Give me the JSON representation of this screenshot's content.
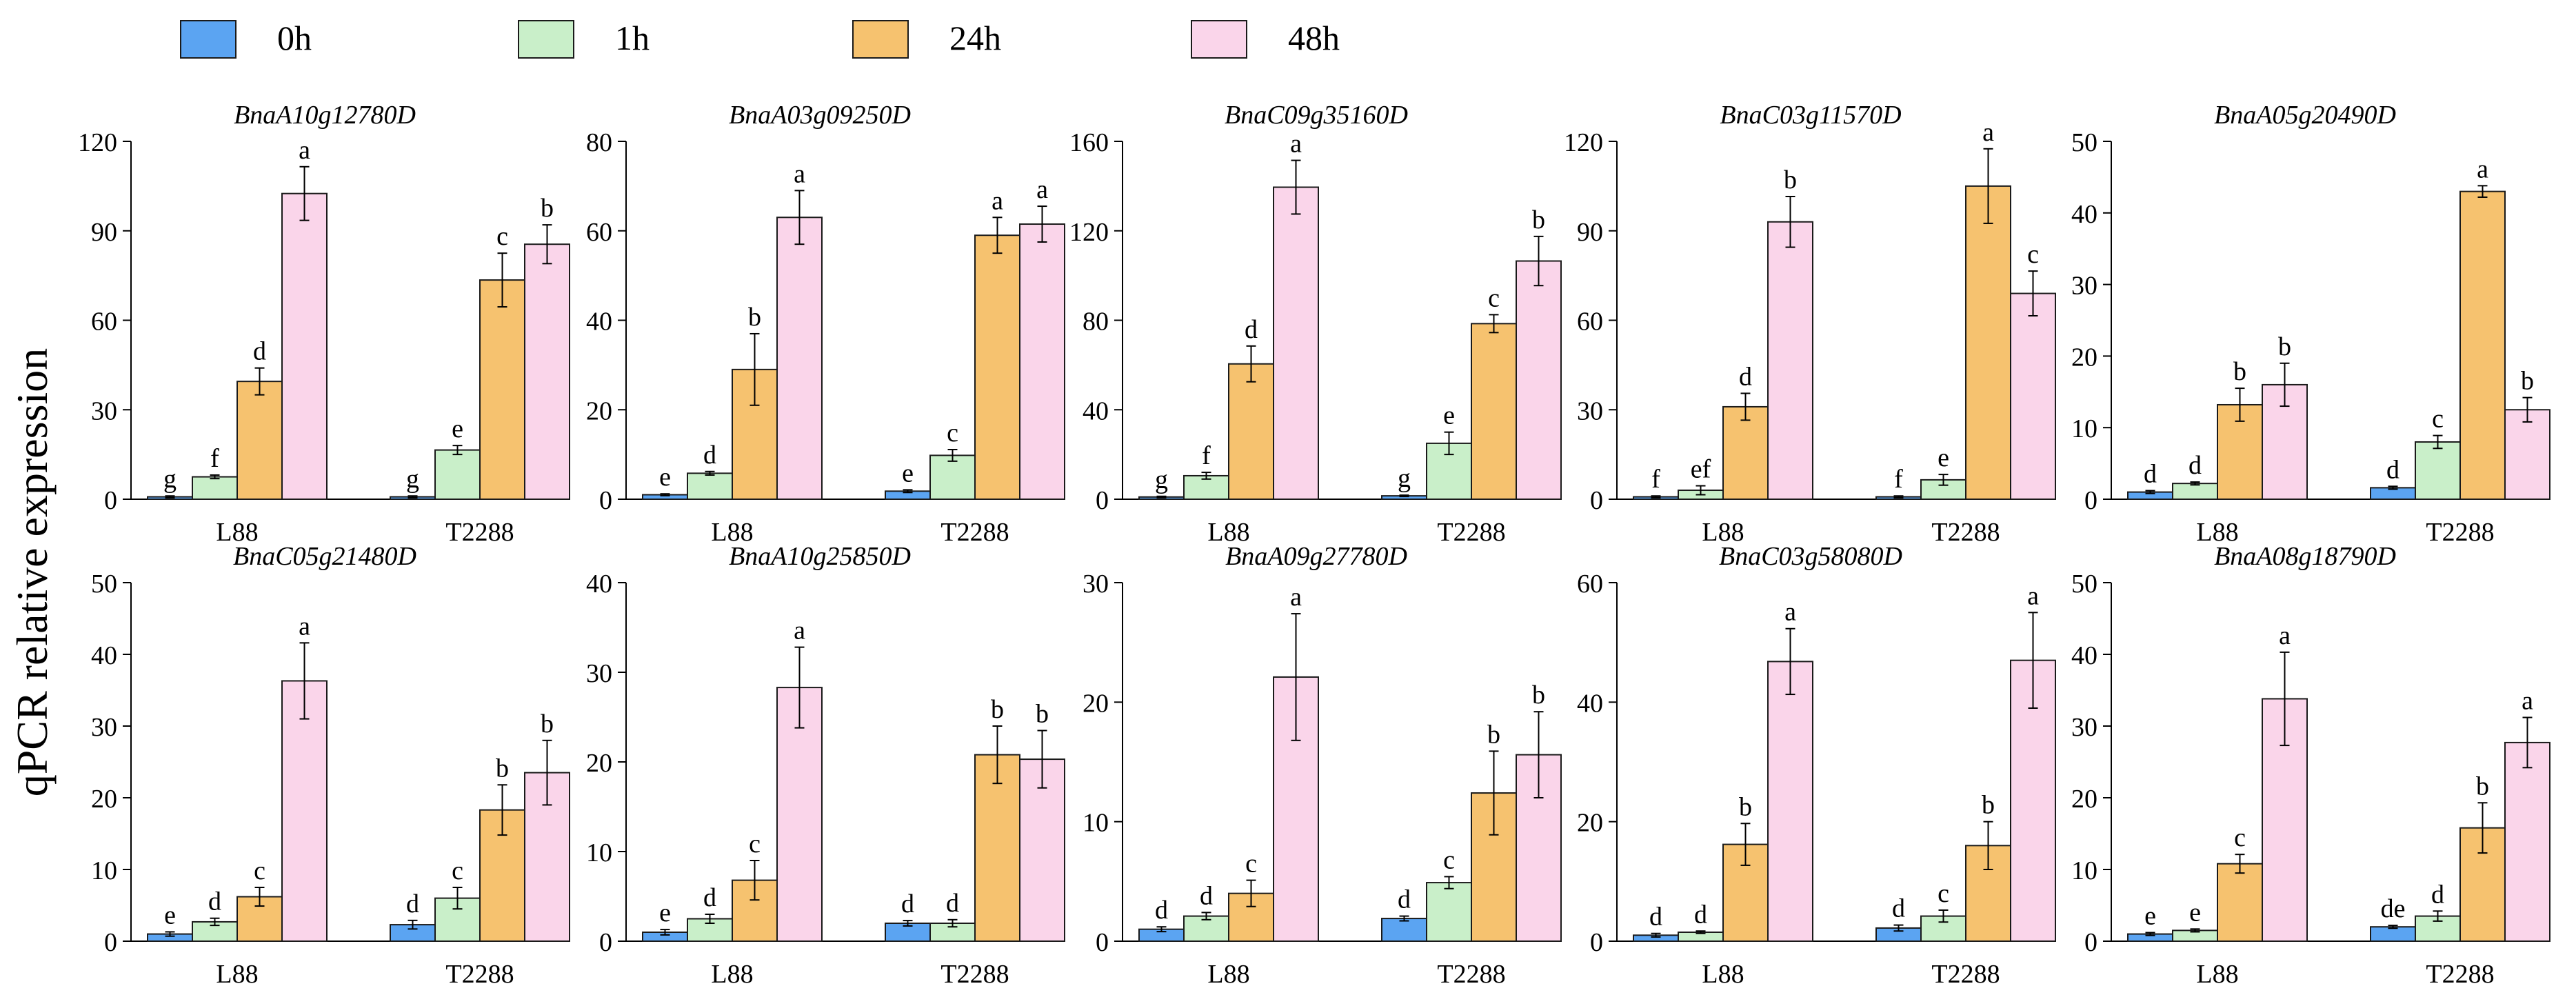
{
  "ylabel": "qPCR relative expression",
  "legend": {
    "items": [
      {
        "name": "0h",
        "color": "#5ba4f2"
      },
      {
        "name": "1h",
        "color": "#c9efc9"
      },
      {
        "name": "24h",
        "color": "#f6c26f"
      },
      {
        "name": "48h",
        "color": "#fad5ea"
      }
    ]
  },
  "chart_data": [
    {
      "type": "bar",
      "title": "BnaA10g12780D",
      "categories": [
        "L88",
        "T2288"
      ],
      "ylim": [
        0,
        120
      ],
      "yticks": [
        0,
        30,
        60,
        90,
        120
      ],
      "series": [
        {
          "name": "0h",
          "values": [
            0.8,
            0.8
          ],
          "errors": [
            0.3,
            0.3
          ],
          "labels": [
            "g",
            "g"
          ]
        },
        {
          "name": "1h",
          "values": [
            7.5,
            16.5
          ],
          "errors": [
            0.6,
            1.5
          ],
          "labels": [
            "f",
            "e"
          ]
        },
        {
          "name": "24h",
          "values": [
            39.5,
            73.5
          ],
          "errors": [
            4.5,
            9.0
          ],
          "labels": [
            "d",
            "c"
          ]
        },
        {
          "name": "48h",
          "values": [
            102.5,
            85.5
          ],
          "errors": [
            9.0,
            6.5
          ],
          "labels": [
            "a",
            "b"
          ]
        }
      ]
    },
    {
      "type": "bar",
      "title": "BnaA03g09250D",
      "categories": [
        "L88",
        "T2288"
      ],
      "ylim": [
        0,
        80
      ],
      "yticks": [
        0,
        20,
        40,
        60,
        80
      ],
      "series": [
        {
          "name": "0h",
          "values": [
            1.0,
            1.8
          ],
          "errors": [
            0.2,
            0.3
          ],
          "labels": [
            "e",
            "e"
          ]
        },
        {
          "name": "1h",
          "values": [
            5.8,
            9.8
          ],
          "errors": [
            0.4,
            1.3
          ],
          "labels": [
            "d",
            "c"
          ]
        },
        {
          "name": "24h",
          "values": [
            29.0,
            59.0
          ],
          "errors": [
            8.0,
            4.0
          ],
          "labels": [
            "b",
            "a"
          ]
        },
        {
          "name": "48h",
          "values": [
            63.0,
            61.5
          ],
          "errors": [
            6.0,
            4.0
          ],
          "labels": [
            "a",
            "a"
          ]
        }
      ]
    },
    {
      "type": "bar",
      "title": "BnaC09g35160D",
      "categories": [
        "L88",
        "T2288"
      ],
      "ylim": [
        0,
        160
      ],
      "yticks": [
        0,
        40,
        80,
        120,
        160
      ],
      "series": [
        {
          "name": "0h",
          "values": [
            1.0,
            1.5
          ],
          "errors": [
            0.3,
            0.3
          ],
          "labels": [
            "g",
            "g"
          ]
        },
        {
          "name": "1h",
          "values": [
            10.5,
            25.0
          ],
          "errors": [
            1.5,
            5.0
          ],
          "labels": [
            "f",
            "e"
          ]
        },
        {
          "name": "24h",
          "values": [
            60.5,
            78.5
          ],
          "errors": [
            8.0,
            4.0
          ],
          "labels": [
            "d",
            "c"
          ]
        },
        {
          "name": "48h",
          "values": [
            139.5,
            106.5
          ],
          "errors": [
            12.0,
            11.0
          ],
          "labels": [
            "a",
            "b"
          ]
        }
      ]
    },
    {
      "type": "bar",
      "title": "BnaC03g11570D",
      "categories": [
        "L88",
        "T2288"
      ],
      "ylim": [
        0,
        120
      ],
      "yticks": [
        0,
        30,
        60,
        90,
        120
      ],
      "series": [
        {
          "name": "0h",
          "values": [
            0.8,
            0.8
          ],
          "errors": [
            0.3,
            0.3
          ],
          "labels": [
            "f",
            "f"
          ]
        },
        {
          "name": "1h",
          "values": [
            3.0,
            6.5
          ],
          "errors": [
            1.5,
            1.8
          ],
          "labels": [
            "ef",
            "e"
          ]
        },
        {
          "name": "24h",
          "values": [
            31.0,
            105.0
          ],
          "errors": [
            4.5,
            12.5
          ],
          "labels": [
            "d",
            "a"
          ]
        },
        {
          "name": "48h",
          "values": [
            93.0,
            69.0
          ],
          "errors": [
            8.5,
            7.5
          ],
          "labels": [
            "b",
            "c"
          ]
        }
      ]
    },
    {
      "type": "bar",
      "title": "BnaA05g20490D",
      "categories": [
        "L88",
        "T2288"
      ],
      "ylim": [
        0,
        50
      ],
      "yticks": [
        0,
        10,
        20,
        30,
        40,
        50
      ],
      "series": [
        {
          "name": "0h",
          "values": [
            1.0,
            1.6
          ],
          "errors": [
            0.2,
            0.2
          ],
          "labels": [
            "d",
            "d"
          ]
        },
        {
          "name": "1h",
          "values": [
            2.2,
            8.0
          ],
          "errors": [
            0.2,
            0.9
          ],
          "labels": [
            "d",
            "c"
          ]
        },
        {
          "name": "24h",
          "values": [
            13.2,
            43.0
          ],
          "errors": [
            2.3,
            0.8
          ],
          "labels": [
            "b",
            "a"
          ]
        },
        {
          "name": "48h",
          "values": [
            16.0,
            12.5
          ],
          "errors": [
            3.0,
            1.7
          ],
          "labels": [
            "b",
            "b"
          ]
        }
      ]
    },
    {
      "type": "bar",
      "title": "BnaC05g21480D",
      "categories": [
        "L88",
        "T2288"
      ],
      "ylim": [
        0,
        50
      ],
      "yticks": [
        0,
        10,
        20,
        30,
        40,
        50
      ],
      "series": [
        {
          "name": "0h",
          "values": [
            1.0,
            2.3
          ],
          "errors": [
            0.3,
            0.6
          ],
          "labels": [
            "e",
            "d"
          ]
        },
        {
          "name": "1h",
          "values": [
            2.7,
            6.0
          ],
          "errors": [
            0.5,
            1.5
          ],
          "labels": [
            "d",
            "c"
          ]
        },
        {
          "name": "24h",
          "values": [
            6.2,
            18.3
          ],
          "errors": [
            1.3,
            3.5
          ],
          "labels": [
            "c",
            "b"
          ]
        },
        {
          "name": "48h",
          "values": [
            36.3,
            23.5
          ],
          "errors": [
            5.3,
            4.5
          ],
          "labels": [
            "a",
            "b"
          ]
        }
      ]
    },
    {
      "type": "bar",
      "title": "BnaA10g25850D",
      "categories": [
        "L88",
        "T2288"
      ],
      "ylim": [
        0,
        40
      ],
      "yticks": [
        0,
        10,
        20,
        30,
        40
      ],
      "series": [
        {
          "name": "0h",
          "values": [
            1.0,
            2.0
          ],
          "errors": [
            0.3,
            0.3
          ],
          "labels": [
            "e",
            "d"
          ]
        },
        {
          "name": "1h",
          "values": [
            2.5,
            2.0
          ],
          "errors": [
            0.5,
            0.4
          ],
          "labels": [
            "d",
            "d"
          ]
        },
        {
          "name": "24h",
          "values": [
            6.8,
            20.8
          ],
          "errors": [
            2.2,
            3.2
          ],
          "labels": [
            "c",
            "b"
          ]
        },
        {
          "name": "48h",
          "values": [
            28.3,
            20.3
          ],
          "errors": [
            4.5,
            3.2
          ],
          "labels": [
            "a",
            "b"
          ]
        }
      ]
    },
    {
      "type": "bar",
      "title": "BnaA09g27780D",
      "categories": [
        "L88",
        "T2288"
      ],
      "ylim": [
        0,
        30
      ],
      "yticks": [
        0,
        10,
        20,
        30
      ],
      "series": [
        {
          "name": "0h",
          "values": [
            1.0,
            1.9
          ],
          "errors": [
            0.2,
            0.2
          ],
          "labels": [
            "d",
            "d"
          ]
        },
        {
          "name": "1h",
          "values": [
            2.1,
            4.9
          ],
          "errors": [
            0.3,
            0.5
          ],
          "labels": [
            "d",
            "c"
          ]
        },
        {
          "name": "24h",
          "values": [
            4.0,
            12.4
          ],
          "errors": [
            1.1,
            3.5
          ],
          "labels": [
            "c",
            "b"
          ]
        },
        {
          "name": "48h",
          "values": [
            22.1,
            15.6
          ],
          "errors": [
            5.3,
            3.6
          ],
          "labels": [
            "a",
            "b"
          ]
        }
      ]
    },
    {
      "type": "bar",
      "title": "BnaC03g58080D",
      "categories": [
        "L88",
        "T2288"
      ],
      "ylim": [
        0,
        60
      ],
      "yticks": [
        0,
        20,
        40,
        60
      ],
      "series": [
        {
          "name": "0h",
          "values": [
            1.0,
            2.2
          ],
          "errors": [
            0.3,
            0.5
          ],
          "labels": [
            "d",
            "d"
          ]
        },
        {
          "name": "1h",
          "values": [
            1.5,
            4.2
          ],
          "errors": [
            0.2,
            1.0
          ],
          "labels": [
            "d",
            "c"
          ]
        },
        {
          "name": "24h",
          "values": [
            16.2,
            16.0
          ],
          "errors": [
            3.5,
            4.0
          ],
          "labels": [
            "b",
            "b"
          ]
        },
        {
          "name": "48h",
          "values": [
            46.8,
            47.0
          ],
          "errors": [
            5.5,
            8.0
          ],
          "labels": [
            "a",
            "a"
          ]
        }
      ]
    },
    {
      "type": "bar",
      "title": "BnaA08g18790D",
      "categories": [
        "L88",
        "T2288"
      ],
      "ylim": [
        0,
        50
      ],
      "yticks": [
        0,
        10,
        20,
        30,
        40,
        50
      ],
      "series": [
        {
          "name": "0h",
          "values": [
            1.0,
            2.0
          ],
          "errors": [
            0.2,
            0.2
          ],
          "labels": [
            "e",
            "de"
          ]
        },
        {
          "name": "1h",
          "values": [
            1.5,
            3.5
          ],
          "errors": [
            0.2,
            0.7
          ],
          "labels": [
            "e",
            "d"
          ]
        },
        {
          "name": "24h",
          "values": [
            10.8,
            15.8
          ],
          "errors": [
            1.3,
            3.5
          ],
          "labels": [
            "c",
            "b"
          ]
        },
        {
          "name": "48h",
          "values": [
            33.8,
            27.7
          ],
          "errors": [
            6.5,
            3.5
          ],
          "labels": [
            "a",
            "a"
          ]
        }
      ]
    }
  ]
}
